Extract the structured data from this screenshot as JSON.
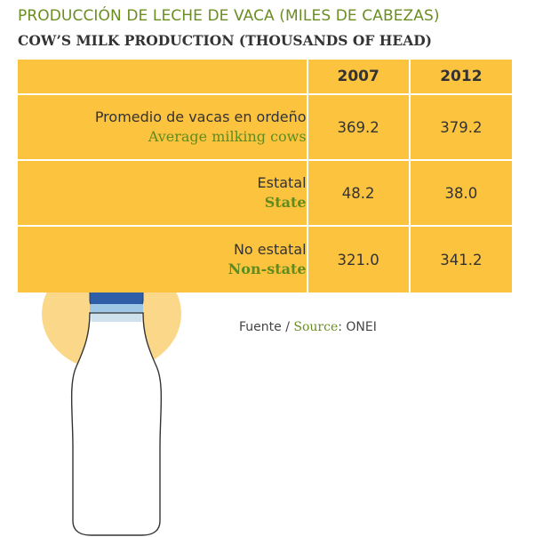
{
  "title_es": "PRODUCCIÓN DE LECHE DE VACA (MILES DE CABEZAS)",
  "title_en": "COW’S MILK PRODUCTION (THOUSANDS OF HEAD)",
  "chart_data": {
    "type": "table",
    "columns": [
      "2007",
      "2012"
    ],
    "rows": [
      {
        "label_es": "Promedio de vacas en ordeño",
        "label_en": "Average milking cows",
        "values": [
          "369.2",
          "379.2"
        ]
      },
      {
        "label_es": "Estatal",
        "label_en": "State",
        "values": [
          "48.2",
          "38.0"
        ]
      },
      {
        "label_es": "No estatal",
        "label_en": "Non-state",
        "values": [
          "321.0",
          "341.2"
        ]
      }
    ]
  },
  "source": {
    "fuente": "Fuente /",
    "source_en": "Source",
    "org": ": ONEI"
  },
  "colors": {
    "table_fill": "#fcc33f",
    "bottle_circle": "#fbd889",
    "title_green": "#6b8e23",
    "bottle_cap": "#2f5ea8"
  },
  "illustration": "milk-bottle-icon"
}
